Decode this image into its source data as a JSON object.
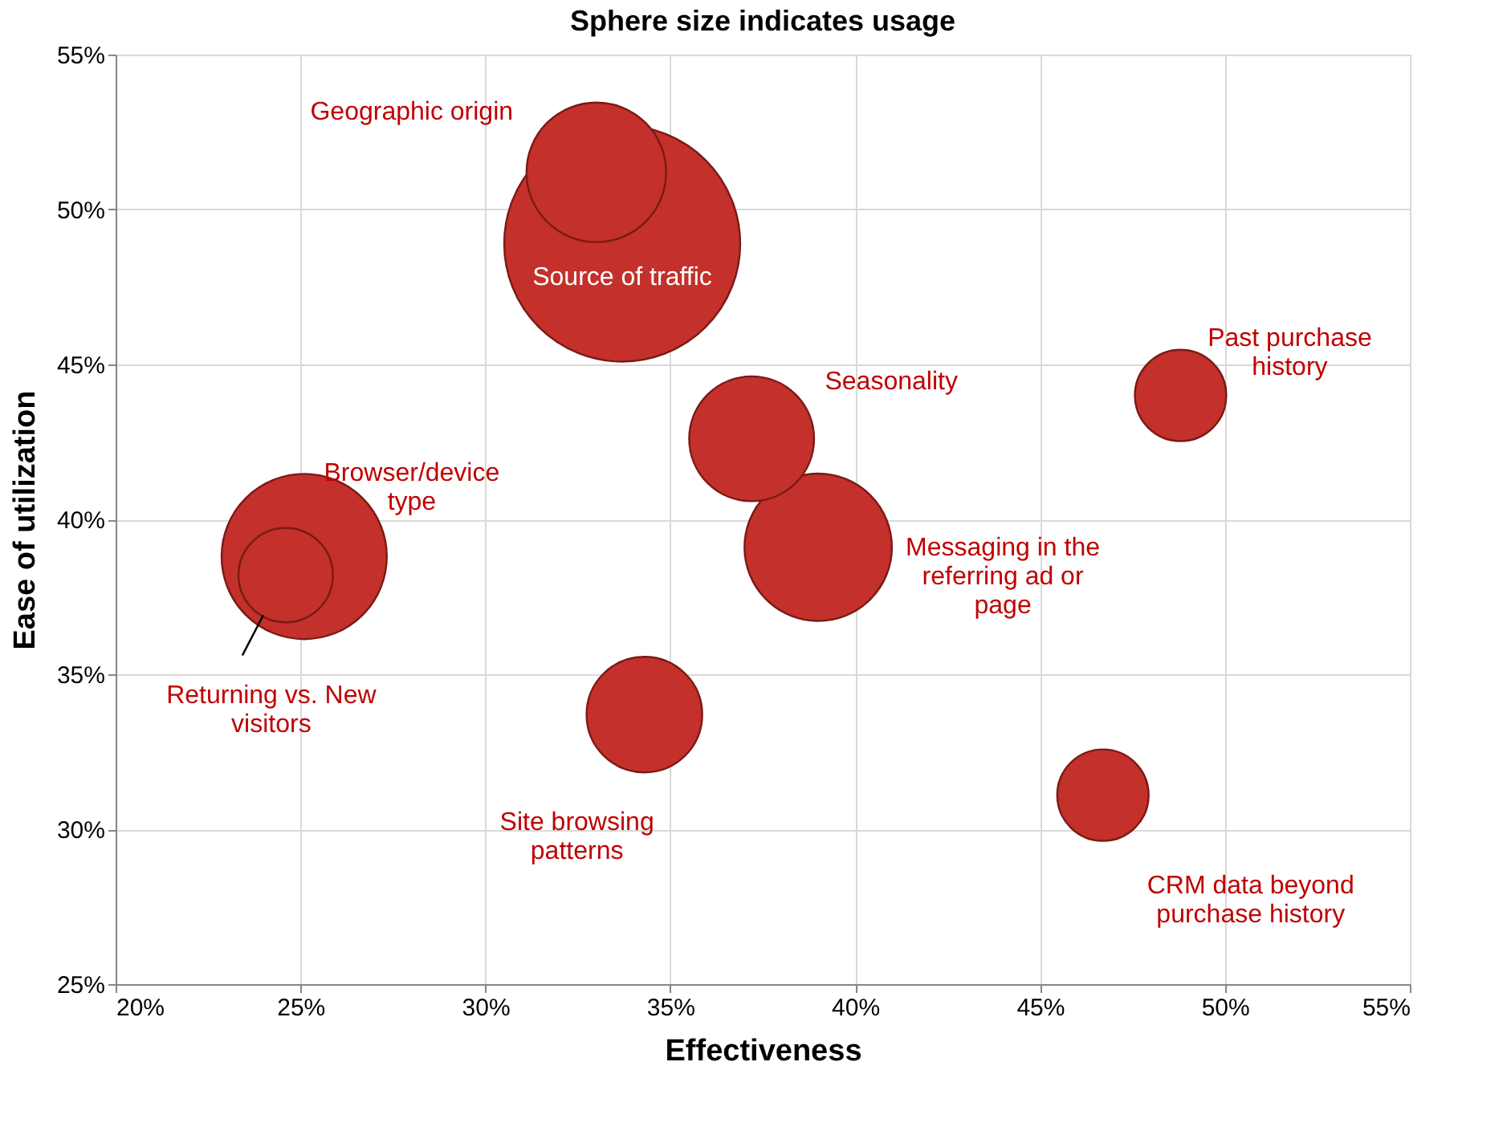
{
  "chart_data": {
    "type": "bubble",
    "title": "Sphere size indicates usage",
    "xlabel": "Effectiveness",
    "ylabel": "Ease of utilization",
    "series": [
      {
        "name": "Source of traffic",
        "color": "#c4302b",
        "x": [
          33.7
        ],
        "values": [
          48.9
        ],
        "sizes": [
          1
        ]
      },
      {
        "name": "Geographic origin",
        "color": "#c4302b",
        "x": [
          33.0
        ],
        "values": [
          51.2
        ],
        "sizes": [
          0.35
        ]
      },
      {
        "name": "Seasonality",
        "color": "#c4302b",
        "x": [
          37.2
        ],
        "values": [
          42.6
        ],
        "sizes": [
          0.28
        ]
      },
      {
        "name": "Messaging in  the\nreferring ad or\npage",
        "color": "#c4302b",
        "x": [
          39.0
        ],
        "values": [
          39.1
        ],
        "sizes": [
          0.39
        ]
      },
      {
        "name": "Past purchase\nhistory",
        "color": "#c4302b",
        "x": [
          48.8
        ],
        "values": [
          44.0
        ],
        "sizes": [
          0.15
        ]
      },
      {
        "name": "CRM data beyond\npurchase history",
        "color": "#c4302b",
        "x": [
          46.7
        ],
        "values": [
          31.1
        ],
        "sizes": [
          0.15
        ]
      },
      {
        "name": "Site browsing\npatterns",
        "color": "#c4302b",
        "x": [
          34.3
        ],
        "values": [
          33.7
        ],
        "sizes": [
          0.24
        ]
      },
      {
        "name": "Browser/device\ntype",
        "color": "#c4302b",
        "x": [
          25.1
        ],
        "values": [
          38.8
        ],
        "sizes": [
          0.49
        ]
      },
      {
        "name": "Returning vs. New\nvisitors",
        "color": "#c4302b",
        "x": [
          24.6
        ],
        "values": [
          38.2
        ],
        "sizes": [
          0.16
        ]
      }
    ],
    "xlim": [
      20,
      55
    ],
    "xticks": [
      {
        "value": 20,
        "label": "20%"
      },
      {
        "value": 25,
        "label": "25%"
      },
      {
        "value": 30,
        "label": "30%"
      },
      {
        "value": 35,
        "label": "35%"
      },
      {
        "value": 40,
        "label": "40%"
      },
      {
        "value": 45,
        "label": "45%"
      },
      {
        "value": 50,
        "label": "50%"
      },
      {
        "value": 55,
        "label": "55%"
      }
    ],
    "ylim": [
      25,
      55
    ],
    "yticks": [
      {
        "value": 25,
        "label": "25%"
      },
      {
        "value": 30,
        "label": "30%"
      },
      {
        "value": 35,
        "label": "35%"
      },
      {
        "value": 40,
        "label": "40%"
      },
      {
        "value": 45,
        "label": "45%"
      },
      {
        "value": 50,
        "label": "50%"
      },
      {
        "value": 55,
        "label": "55%"
      }
    ],
    "grid": true
  }
}
